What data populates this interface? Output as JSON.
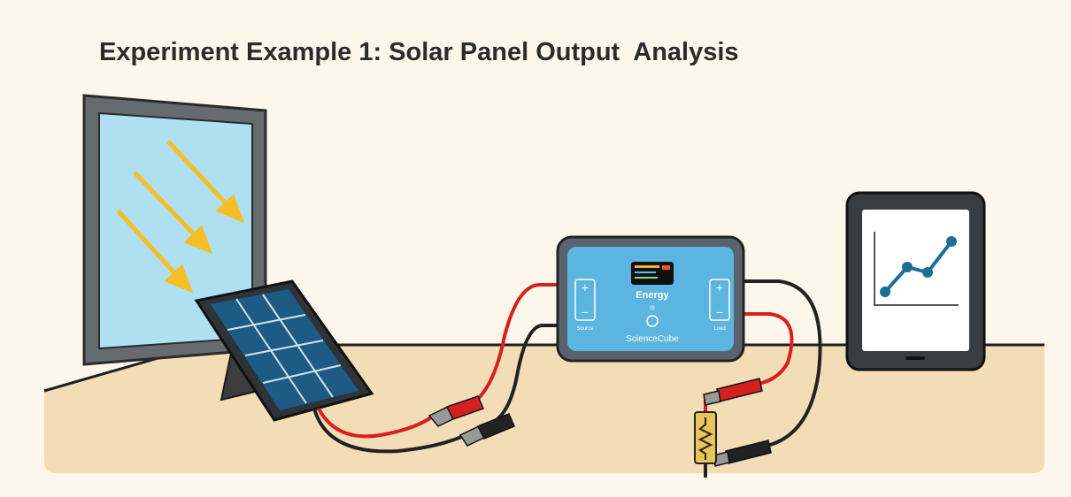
{
  "header": {
    "title": "Experiment Example 1: Solar Panel Output  Analysis"
  },
  "device": {
    "label": "Energy",
    "source_label": "Source",
    "load_label": "Load",
    "brand": "ScienceCube"
  }
}
